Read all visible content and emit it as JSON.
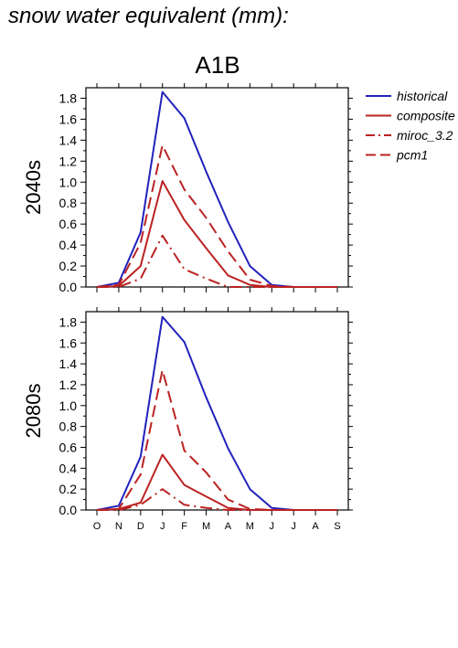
{
  "figure": {
    "title": "snow water equivalent (mm):",
    "scenario": "A1B"
  },
  "chart_data": [
    {
      "type": "line",
      "panel_label": "2040s",
      "categories": [
        "O",
        "N",
        "D",
        "J",
        "F",
        "M",
        "A",
        "M",
        "J",
        "J",
        "A",
        "S"
      ],
      "ylim": [
        0,
        1.9
      ],
      "yticks": [
        0.0,
        0.2,
        0.4,
        0.6,
        0.8,
        1.0,
        1.2,
        1.4,
        1.6,
        1.8
      ],
      "ytick_labels": [
        "0.0",
        "0.2",
        "0.4",
        "0.6",
        "0.8",
        "1.0",
        "1.2",
        "1.4",
        "1.6",
        "1.8"
      ],
      "show_x_tick_labels": false,
      "series": [
        {
          "name": "historical",
          "color": "#2222bb",
          "dash": "solid",
          "values": [
            0.0,
            0.04,
            0.52,
            1.86,
            1.61,
            1.1,
            0.62,
            0.2,
            0.02,
            0.0,
            0.0,
            0.0
          ]
        },
        {
          "name": "composite",
          "color": "#bb2222",
          "dash": "solid",
          "values": [
            0.0,
            0.01,
            0.2,
            1.01,
            0.64,
            0.37,
            0.11,
            0.02,
            0.0,
            0.0,
            0.0,
            0.0
          ]
        },
        {
          "name": "miroc_3.2",
          "color": "#bb2222",
          "dash": "dashdot",
          "values": [
            0.0,
            0.0,
            0.08,
            0.49,
            0.17,
            0.08,
            0.0,
            0.0,
            0.0,
            0.0,
            0.0,
            0.0
          ]
        },
        {
          "name": "pcm1",
          "color": "#bb2222",
          "dash": "dash",
          "values": [
            0.0,
            0.02,
            0.42,
            1.35,
            0.93,
            0.66,
            0.34,
            0.07,
            0.01,
            0.0,
            0.0,
            0.0
          ]
        }
      ]
    },
    {
      "type": "line",
      "panel_label": "2080s",
      "categories": [
        "O",
        "N",
        "D",
        "J",
        "F",
        "M",
        "A",
        "M",
        "J",
        "J",
        "A",
        "S"
      ],
      "ylim": [
        0,
        1.9
      ],
      "yticks": [
        0.0,
        0.2,
        0.4,
        0.6,
        0.8,
        1.0,
        1.2,
        1.4,
        1.6,
        1.8
      ],
      "ytick_labels": [
        "0.0",
        "0.2",
        "0.4",
        "0.6",
        "0.8",
        "1.0",
        "1.2",
        "1.4",
        "1.6",
        "1.8"
      ],
      "show_x_tick_labels": true,
      "series": [
        {
          "name": "historical",
          "color": "#2222bb",
          "dash": "solid",
          "values": [
            0.0,
            0.04,
            0.51,
            1.85,
            1.61,
            1.08,
            0.59,
            0.2,
            0.02,
            0.0,
            0.0,
            0.0
          ]
        },
        {
          "name": "composite",
          "color": "#bb2222",
          "dash": "solid",
          "values": [
            0.0,
            0.01,
            0.07,
            0.53,
            0.24,
            0.13,
            0.02,
            0.0,
            0.0,
            0.0,
            0.0,
            0.0
          ]
        },
        {
          "name": "miroc_3.2",
          "color": "#bb2222",
          "dash": "dashdot",
          "values": [
            0.0,
            0.0,
            0.05,
            0.2,
            0.05,
            0.02,
            0.0,
            0.0,
            0.0,
            0.0,
            0.0,
            0.0
          ]
        },
        {
          "name": "pcm1",
          "color": "#bb2222",
          "dash": "dash",
          "values": [
            0.0,
            0.01,
            0.34,
            1.34,
            0.57,
            0.36,
            0.1,
            0.01,
            0.0,
            0.0,
            0.0,
            0.0
          ]
        }
      ]
    }
  ],
  "legend": {
    "placement": "right",
    "entries": [
      {
        "name": "historical",
        "color": "#2222bb",
        "dash": "solid"
      },
      {
        "name": "composite",
        "color": "#bb2222",
        "dash": "solid"
      },
      {
        "name": "miroc_3.2",
        "color": "#bb2222",
        "dash": "dashdot"
      },
      {
        "name": "pcm1",
        "color": "#bb2222",
        "dash": "dash"
      }
    ]
  }
}
